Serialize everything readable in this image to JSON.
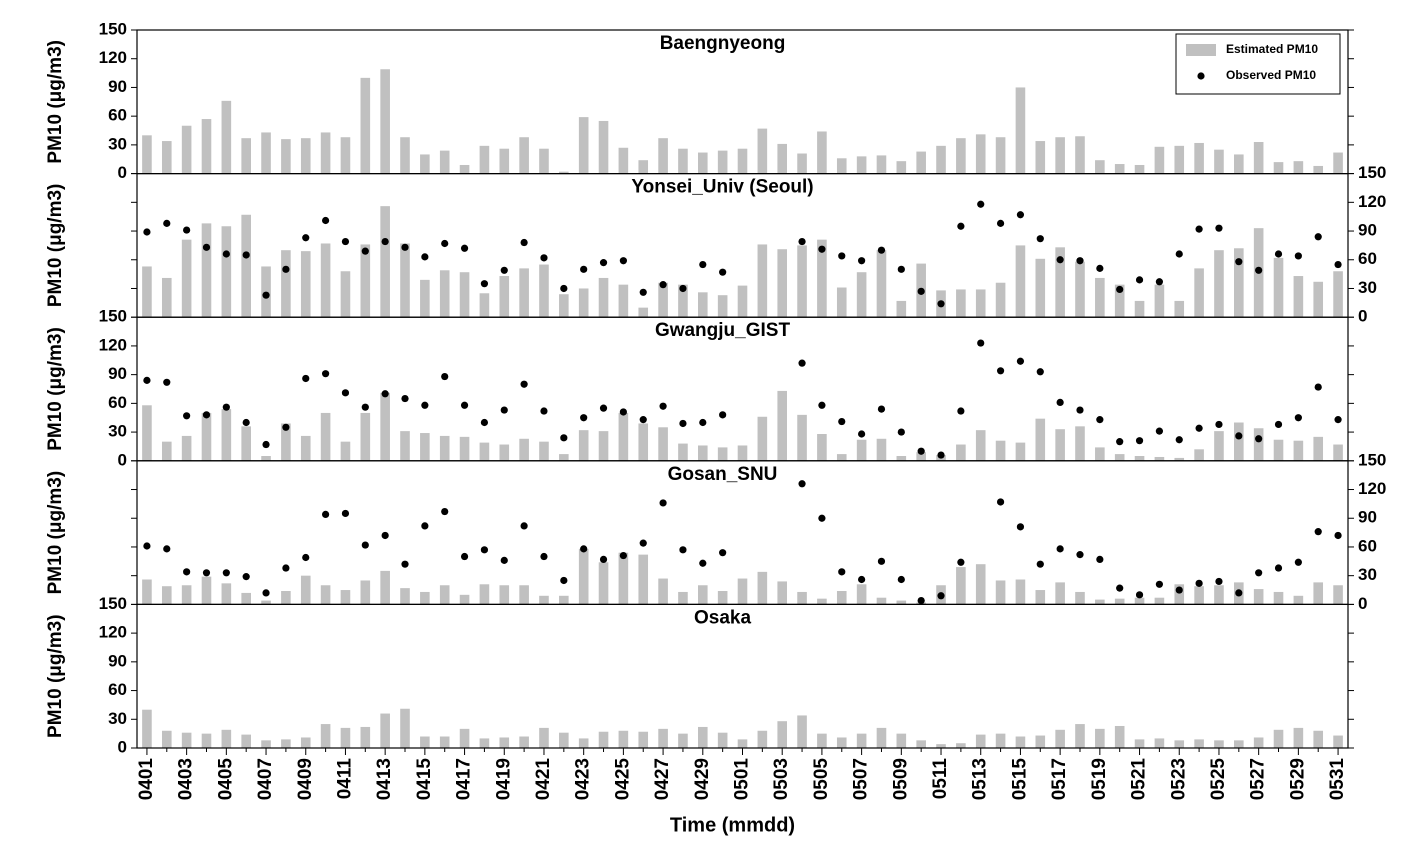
{
  "chart_data": [
    {
      "type": "bar",
      "title": "Baengnyeong",
      "ylabel": "PM10 (μg/m3)",
      "yaxis": "left",
      "legend": "upper right",
      "ylim": [
        0,
        150
      ],
      "yticks": [
        0,
        30,
        60,
        90,
        120,
        150
      ],
      "series": [
        {
          "name": "Estimated PM10",
          "color": "#c0c0c0",
          "values": [
            40,
            34,
            50,
            57,
            76,
            37,
            43,
            36,
            37,
            43,
            38,
            100,
            109,
            38,
            20,
            24,
            9,
            29,
            26,
            38,
            26,
            2,
            59,
            55,
            27,
            14,
            37,
            26,
            22,
            24,
            26,
            47,
            31,
            21,
            44,
            16,
            18,
            19,
            13,
            23,
            29,
            37,
            41,
            38,
            90,
            34,
            38,
            39,
            14,
            10,
            9,
            28,
            29,
            32,
            25,
            20,
            33,
            12,
            13,
            8,
            22
          ]
        },
        {
          "name": "Observed PM10",
          "type": "scatter",
          "color": "#000000",
          "values": [
            null,
            null,
            null,
            null,
            null,
            null,
            null,
            null,
            null,
            null,
            null,
            null,
            null,
            null,
            null,
            null,
            null,
            null,
            null,
            null,
            null,
            null,
            null,
            null,
            null,
            null,
            null,
            null,
            null,
            null,
            null,
            null,
            null,
            null,
            null,
            null,
            null,
            null,
            null,
            null,
            null,
            null,
            null,
            null,
            null,
            null,
            null,
            null,
            null,
            null,
            null,
            null,
            null,
            null,
            null,
            null,
            null,
            null,
            null,
            null,
            null
          ]
        }
      ]
    },
    {
      "type": "bar",
      "title": "Yonsei_Univ (Seoul)",
      "ylabel": "PM10 (μg/m3)",
      "yaxis": "right",
      "ylim": [
        0,
        150
      ],
      "yticks": [
        0,
        30,
        60,
        90,
        120,
        150
      ],
      "series": [
        {
          "name": "Estimated PM10",
          "color": "#c0c0c0",
          "values": [
            53,
            41,
            81,
            98,
            95,
            107,
            53,
            70,
            69,
            77,
            48,
            76,
            116,
            77,
            39,
            49,
            47,
            25,
            43,
            51,
            55,
            24,
            30,
            41,
            34,
            10,
            36,
            34,
            26,
            23,
            33,
            76,
            71,
            75,
            81,
            31,
            47,
            70,
            17,
            56,
            28,
            29,
            29,
            36,
            75,
            61,
            73,
            58,
            41,
            34,
            17,
            34,
            17,
            51,
            70,
            72,
            93,
            62,
            43,
            37,
            48
          ]
        },
        {
          "name": "Observed PM10",
          "type": "scatter",
          "color": "#000000",
          "values": [
            89,
            98,
            91,
            73,
            66,
            65,
            23,
            50,
            83,
            101,
            79,
            69,
            79,
            73,
            63,
            77,
            72,
            35,
            49,
            78,
            62,
            30,
            50,
            57,
            59,
            26,
            34,
            30,
            55,
            47,
            null,
            null,
            null,
            79,
            71,
            64,
            59,
            70,
            50,
            27,
            14,
            95,
            118,
            98,
            107,
            82,
            60,
            59,
            51,
            29,
            39,
            37,
            66,
            92,
            93,
            58,
            49,
            66,
            64,
            84,
            55
          ]
        }
      ]
    },
    {
      "type": "bar",
      "title": "Gwangju_GIST",
      "ylabel": "PM10 (μg/m3)",
      "yaxis": "left",
      "ylim": [
        0,
        150
      ],
      "yticks": [
        0,
        30,
        60,
        90,
        120,
        150
      ],
      "series": [
        {
          "name": "Estimated PM10",
          "color": "#c0c0c0",
          "values": [
            58,
            20,
            26,
            50,
            54,
            36,
            5,
            39,
            26,
            50,
            20,
            50,
            71,
            31,
            29,
            26,
            25,
            19,
            17,
            23,
            20,
            7,
            32,
            31,
            50,
            39,
            35,
            18,
            16,
            14,
            16,
            46,
            73,
            48,
            28,
            7,
            22,
            23,
            5,
            9,
            6,
            17,
            32,
            21,
            19,
            44,
            33,
            36,
            14,
            7,
            5,
            4,
            3,
            12,
            31,
            40,
            34,
            22,
            21,
            25,
            17
          ]
        },
        {
          "name": "Observed PM10",
          "type": "scatter",
          "color": "#000000",
          "values": [
            84,
            82,
            47,
            48,
            56,
            40,
            17,
            35,
            86,
            91,
            71,
            56,
            70,
            65,
            58,
            88,
            58,
            40,
            53,
            80,
            52,
            24,
            45,
            55,
            51,
            43,
            57,
            39,
            40,
            48,
            null,
            null,
            null,
            102,
            58,
            41,
            28,
            54,
            30,
            10,
            6,
            52,
            123,
            94,
            104,
            93,
            61,
            53,
            43,
            20,
            21,
            31,
            22,
            34,
            38,
            26,
            23,
            38,
            45,
            77,
            43
          ]
        }
      ]
    },
    {
      "type": "bar",
      "title": "Gosan_SNU",
      "ylabel": "PM10 (μg/m3)",
      "yaxis": "right",
      "ylim": [
        0,
        150
      ],
      "yticks": [
        0,
        30,
        60,
        90,
        120,
        150
      ],
      "series": [
        {
          "name": "Estimated PM10",
          "color": "#c0c0c0",
          "values": [
            26,
            19,
            20,
            29,
            22,
            12,
            4,
            14,
            30,
            20,
            15,
            25,
            35,
            17,
            13,
            20,
            10,
            21,
            20,
            20,
            9,
            9,
            58,
            44,
            54,
            52,
            27,
            13,
            20,
            14,
            27,
            34,
            24,
            13,
            6,
            14,
            21,
            7,
            4,
            2,
            20,
            39,
            42,
            25,
            26,
            15,
            23,
            13,
            5,
            6,
            7,
            7,
            21,
            19,
            20,
            23,
            16,
            13,
            9,
            23,
            20
          ]
        },
        {
          "name": "Observed PM10",
          "type": "scatter",
          "color": "#000000",
          "values": [
            61,
            58,
            34,
            33,
            33,
            29,
            12,
            38,
            49,
            94,
            95,
            62,
            72,
            42,
            82,
            97,
            50,
            57,
            46,
            82,
            50,
            25,
            58,
            47,
            51,
            64,
            106,
            57,
            43,
            54,
            null,
            null,
            null,
            126,
            90,
            34,
            26,
            45,
            26,
            4,
            9,
            44,
            null,
            107,
            81,
            42,
            58,
            52,
            47,
            17,
            10,
            21,
            15,
            22,
            24,
            12,
            33,
            38,
            44,
            76,
            72
          ]
        }
      ]
    },
    {
      "type": "bar",
      "title": "Osaka",
      "ylabel": "PM10 (μg/m3)",
      "yaxis": "left",
      "xlabel": "Time (mmdd)",
      "ylim": [
        0,
        150
      ],
      "yticks": [
        0,
        30,
        60,
        90,
        120,
        150
      ],
      "categories": [
        "0401",
        null,
        "0403",
        null,
        "0405",
        null,
        "0407",
        null,
        "0409",
        null,
        "0411",
        null,
        "0413",
        null,
        "0415",
        null,
        "0417",
        null,
        "0419",
        null,
        "0421",
        null,
        "0423",
        null,
        "0425",
        null,
        "0427",
        null,
        "0429",
        null,
        "0501",
        null,
        "0503",
        null,
        "0505",
        null,
        "0507",
        null,
        "0509",
        null,
        "0511",
        null,
        "0513",
        null,
        "0515",
        null,
        "0517",
        null,
        "0519",
        null,
        "0521",
        null,
        "0523",
        null,
        "0525",
        null,
        "0527",
        null,
        "0529",
        null,
        "0531"
      ],
      "series": [
        {
          "name": "Estimated PM10",
          "color": "#c0c0c0",
          "values": [
            40,
            18,
            16,
            15,
            19,
            14,
            8,
            9,
            11,
            25,
            21,
            22,
            36,
            41,
            12,
            12,
            20,
            10,
            11,
            12,
            21,
            16,
            10,
            17,
            18,
            17,
            20,
            15,
            22,
            16,
            9,
            18,
            28,
            34,
            15,
            11,
            15,
            21,
            15,
            8,
            4,
            5,
            14,
            15,
            12,
            13,
            19,
            25,
            20,
            23,
            9,
            10,
            8,
            9,
            8,
            8,
            11,
            19,
            21,
            18,
            13
          ]
        }
      ]
    }
  ]
}
